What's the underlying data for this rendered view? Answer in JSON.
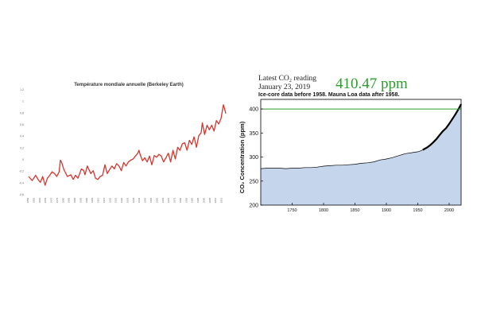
{
  "chart_data": [
    {
      "type": "line",
      "title": "Température mondiale annuelle (Berkeley Earth)",
      "xlabel": "",
      "ylabel": "",
      "x_range": [
        1850,
        2018
      ],
      "ylim": [
        -0.6,
        1.2
      ],
      "yticks": [
        "1.2",
        "1",
        "0.8",
        "0.6",
        "0.4",
        "0.2",
        "0",
        "-0.2",
        "-0.4",
        "-0.6"
      ],
      "xticks": [
        "1850",
        "1855",
        "1860",
        "1865",
        "1870",
        "1875",
        "1880",
        "1885",
        "1890",
        "1895",
        "1900",
        "1905",
        "1910",
        "1915",
        "1920",
        "1925",
        "1930",
        "1935",
        "1940",
        "1945",
        "1950",
        "1955",
        "1960",
        "1965",
        "1970",
        "1975",
        "1980",
        "1985",
        "1990",
        "1995",
        "2000",
        "2005",
        "2010",
        "2015"
      ],
      "grid": false,
      "series": [
        {
          "color": "#d9342b",
          "x": [
            1850,
            1853,
            1856,
            1858,
            1860,
            1862,
            1864,
            1866,
            1868,
            1870,
            1872,
            1874,
            1876,
            1877,
            1878,
            1880,
            1883,
            1886,
            1888,
            1890,
            1892,
            1895,
            1897,
            1898,
            1900,
            1903,
            1905,
            1907,
            1909,
            1911,
            1913,
            1915,
            1917,
            1919,
            1921,
            1923,
            1925,
            1927,
            1929,
            1931,
            1933,
            1935,
            1937,
            1939,
            1941,
            1943,
            1944,
            1945,
            1947,
            1949,
            1951,
            1953,
            1955,
            1957,
            1959,
            1961,
            1963,
            1965,
            1967,
            1969,
            1971,
            1973,
            1975,
            1977,
            1979,
            1981,
            1983,
            1985,
            1987,
            1989,
            1991,
            1993,
            1995,
            1997,
            1998,
            2000,
            2002,
            2004,
            2006,
            2008,
            2010,
            2012,
            2014,
            2015,
            2016,
            2017,
            2018
          ],
          "values": [
            -0.3,
            -0.37,
            -0.28,
            -0.35,
            -0.4,
            -0.3,
            -0.45,
            -0.33,
            -0.28,
            -0.22,
            -0.25,
            -0.3,
            -0.22,
            -0.02,
            -0.05,
            -0.18,
            -0.3,
            -0.27,
            -0.35,
            -0.28,
            -0.33,
            -0.17,
            -0.2,
            -0.27,
            -0.12,
            -0.25,
            -0.2,
            -0.33,
            -0.35,
            -0.3,
            -0.28,
            -0.1,
            -0.25,
            -0.18,
            -0.12,
            -0.17,
            -0.08,
            -0.12,
            -0.2,
            -0.06,
            -0.12,
            -0.05,
            -0.02,
            0.0,
            0.05,
            0.1,
            0.15,
            0.08,
            -0.03,
            0.02,
            -0.05,
            0.05,
            -0.1,
            0.06,
            0.03,
            0.08,
            0.05,
            -0.05,
            0.02,
            0.1,
            -0.05,
            0.15,
            0.0,
            0.2,
            0.15,
            0.26,
            0.28,
            0.15,
            0.32,
            0.25,
            0.38,
            0.2,
            0.4,
            0.45,
            0.62,
            0.42,
            0.58,
            0.5,
            0.58,
            0.48,
            0.66,
            0.6,
            0.7,
            0.82,
            0.93,
            0.86,
            0.78
          ]
        }
      ]
    },
    {
      "type": "area",
      "title": "Ice-core data before 1958. Mauna Loa data after 1958.",
      "reading_label": "Latest CO₂ reading",
      "reading_date": "January 23, 2019",
      "reading_value": "410.47 ppm",
      "reading_color": "#2e9b2e",
      "ylabel": "CO₂ Concentration (ppm)",
      "xlabel": "",
      "xlim": [
        1700,
        2019
      ],
      "ylim": [
        200,
        420
      ],
      "xticks": [
        "1750",
        "1800",
        "1850",
        "1900",
        "1950",
        "2000"
      ],
      "yticks": [
        "200",
        "250",
        "300",
        "350",
        "400"
      ],
      "reference_line": 400,
      "reference_color": "#2e9b2e",
      "fill_color": "#c5d6ec",
      "grid": false,
      "series": [
        {
          "color": "#000000",
          "x": [
            1700,
            1710,
            1720,
            1730,
            1740,
            1750,
            1760,
            1770,
            1780,
            1790,
            1800,
            1810,
            1820,
            1830,
            1840,
            1850,
            1860,
            1870,
            1880,
            1890,
            1900,
            1910,
            1920,
            1930,
            1940,
            1950,
            1955,
            1958,
            1965,
            1970,
            1975,
            1980,
            1985,
            1990,
            1995,
            2000,
            2005,
            2010,
            2015,
            2019
          ],
          "values": [
            276,
            277,
            277,
            277,
            276,
            277,
            277,
            278,
            278,
            279,
            281,
            282,
            283,
            283,
            284,
            285,
            287,
            288,
            290,
            294,
            296,
            299,
            303,
            307,
            309,
            311,
            313,
            315,
            320,
            325,
            331,
            338,
            346,
            354,
            360,
            369,
            379,
            389,
            400,
            410
          ]
        }
      ]
    }
  ]
}
